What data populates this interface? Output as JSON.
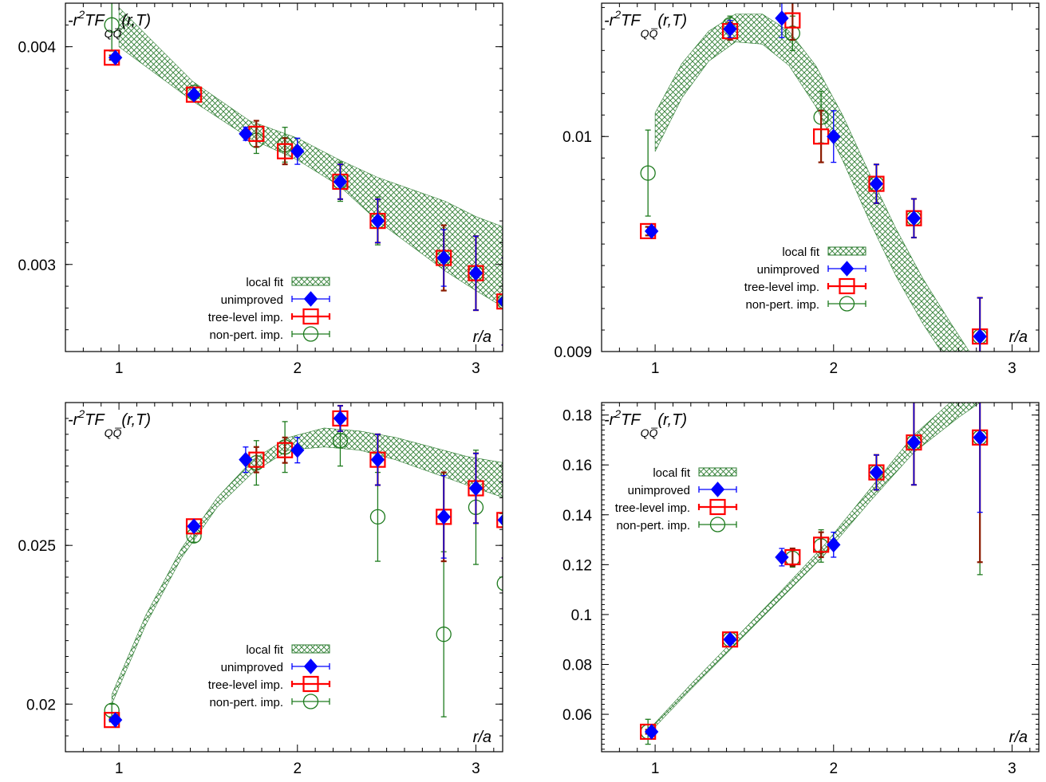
{
  "colors": {
    "fit": "#2e7d32",
    "unimproved": "#0000ff",
    "tree_level": "#ff0000",
    "tree_level_err": "#8b1a00",
    "non_pert": "#1e7b1e"
  },
  "legend_labels": [
    "local fit",
    "unimproved",
    "tree-level imp.",
    "non-pert. imp."
  ],
  "chart_data": [
    {
      "type": "scatter",
      "title": "",
      "ylabel": "-r^2TF_{QQ̄}(r,T)",
      "xlabel": "r/a",
      "xlim": [
        0.7,
        3.15
      ],
      "ylim": [
        0.0026,
        0.0042
      ],
      "xticks": [
        1,
        2,
        3
      ],
      "yticks": [
        0.003,
        0.004
      ],
      "ytick_labels": [
        "0.003",
        "0.004"
      ],
      "legend_position": "bottom-center",
      "fit_band": {
        "x": [
          1.0,
          1.414,
          1.732,
          2.0,
          2.236,
          2.449,
          2.828,
          3.0,
          3.162
        ],
        "lo": [
          0.004,
          0.00375,
          0.00358,
          0.00348,
          0.00336,
          0.0032,
          0.00297,
          0.00288,
          0.0028
        ],
        "hi": [
          0.00418,
          0.00384,
          0.00366,
          0.00358,
          0.00348,
          0.0034,
          0.00329,
          0.00322,
          0.00317
        ]
      },
      "series": [
        {
          "name": "unimproved",
          "points": [
            [
              0.98,
              0.00395,
              1e-05
            ],
            [
              1.42,
              0.00378,
              1e-05
            ],
            [
              1.71,
              0.0036,
              3e-05
            ],
            [
              2.0,
              0.00352,
              6e-05
            ],
            [
              2.24,
              0.00338,
              8e-05
            ],
            [
              2.45,
              0.0032,
              0.0001
            ],
            [
              2.82,
              0.00303,
              0.00013
            ],
            [
              3.0,
              0.00296,
              0.00017
            ],
            [
              3.16,
              0.00283,
              0.0002
            ]
          ]
        },
        {
          "name": "tree-level imp.",
          "points": [
            [
              0.96,
              0.00395,
              1e-05
            ],
            [
              1.42,
              0.00378,
              1e-05
            ],
            [
              1.77,
              0.0036,
              6e-05
            ],
            [
              1.93,
              0.00352,
              6e-05
            ],
            [
              2.24,
              0.00338,
              8e-05
            ],
            [
              2.45,
              0.0032,
              0.0001
            ],
            [
              2.82,
              0.00303,
              0.00015
            ],
            [
              3.0,
              0.00296,
              0.00017
            ],
            [
              3.16,
              0.00283,
              0.0002
            ]
          ]
        },
        {
          "name": "non-pert. imp.",
          "points": [
            [
              0.96,
              0.0041,
              0.00012
            ],
            [
              1.42,
              0.00379,
              2e-05
            ],
            [
              1.77,
              0.00357,
              6e-05
            ],
            [
              1.93,
              0.00355,
              8e-05
            ],
            [
              2.24,
              0.00338,
              9e-05
            ],
            [
              2.45,
              0.0032,
              0.00011
            ],
            [
              2.82,
              0.00303,
              0.00015
            ],
            [
              3.0,
              0.00296,
              0.00017
            ],
            [
              3.16,
              0.00283,
              0.0002
            ]
          ]
        }
      ]
    },
    {
      "type": "scatter",
      "title": "",
      "ylabel": "-r^2TF_{QQ̄}(r,T)",
      "xlabel": "r/a",
      "xlim": [
        0.7,
        3.15
      ],
      "ylim": [
        0.009,
        0.01062
      ],
      "xticks": [
        1,
        2,
        3
      ],
      "yticks": [
        0.009,
        0.01
      ],
      "ytick_labels": [
        "0.009",
        "0.01"
      ],
      "legend_position": "right-center",
      "fit_band": {
        "x": [
          1.0,
          1.15,
          1.3,
          1.45,
          1.6,
          1.75,
          1.9,
          2.05,
          2.2,
          2.35,
          2.5,
          2.65,
          2.8,
          2.9
        ],
        "lo": [
          0.00993,
          0.01018,
          0.01035,
          0.01044,
          0.01043,
          0.01033,
          0.01014,
          0.00989,
          0.00961,
          0.00935,
          0.00913,
          0.00894,
          0.00875,
          0.00862
        ],
        "hi": [
          0.01011,
          0.01034,
          0.01049,
          0.01057,
          0.01057,
          0.01049,
          0.01033,
          0.0101,
          0.00983,
          0.00957,
          0.00934,
          0.00914,
          0.00895,
          0.00883
        ]
      },
      "series": [
        {
          "name": "unimproved",
          "points": [
            [
              0.98,
              0.00956,
              2e-05
            ],
            [
              1.42,
              0.0105,
              4e-05
            ],
            [
              1.71,
              0.01055,
              9e-05
            ],
            [
              2.0,
              0.01,
              0.00012
            ],
            [
              2.24,
              0.00978,
              9e-05
            ],
            [
              2.45,
              0.00962,
              9e-05
            ],
            [
              2.82,
              0.00907,
              0.00018
            ]
          ]
        },
        {
          "name": "tree-level imp.",
          "points": [
            [
              0.96,
              0.00956,
              2e-05
            ],
            [
              1.42,
              0.01049,
              4e-05
            ],
            [
              1.77,
              0.01054,
              9e-05
            ],
            [
              1.93,
              0.01,
              0.00012
            ],
            [
              2.24,
              0.00978,
              9e-05
            ],
            [
              2.45,
              0.00962,
              9e-05
            ],
            [
              2.82,
              0.00907,
              0.00018
            ]
          ]
        },
        {
          "name": "non-pert. imp.",
          "points": [
            [
              0.96,
              0.00983,
              0.0002
            ],
            [
              1.42,
              0.01052,
              4e-05
            ],
            [
              1.77,
              0.01048,
              8e-05
            ],
            [
              1.93,
              0.01009,
              0.00012
            ],
            [
              2.24,
              0.00978,
              9e-05
            ],
            [
              2.45,
              0.00962,
              9e-05
            ],
            [
              2.82,
              0.00907,
              0.00018
            ]
          ]
        }
      ]
    },
    {
      "type": "scatter",
      "title": "",
      "ylabel": "-r^2TF_{QQ̄}(r,T)",
      "xlabel": "r/a",
      "xlim": [
        0.7,
        3.15
      ],
      "ylim": [
        0.0185,
        0.0295
      ],
      "xticks": [
        1,
        2,
        3
      ],
      "yticks": [
        0.02,
        0.025
      ],
      "ytick_labels": [
        "0.02",
        "0.025"
      ],
      "legend_position": "bottom-center",
      "fit_band": {
        "x": [
          0.96,
          1.15,
          1.35,
          1.55,
          1.75,
          1.95,
          2.15,
          2.35,
          2.55,
          2.75,
          2.95,
          3.16
        ],
        "lo": [
          0.02,
          0.0225,
          0.0246,
          0.0262,
          0.0273,
          0.028,
          0.0281,
          0.028,
          0.0277,
          0.0273,
          0.0269,
          0.0265
        ],
        "hi": [
          0.0203,
          0.0228,
          0.0249,
          0.0265,
          0.0277,
          0.0284,
          0.0287,
          0.0286,
          0.0284,
          0.0281,
          0.0278,
          0.0276
        ]
      },
      "series": [
        {
          "name": "unimproved",
          "points": [
            [
              0.98,
              0.0195,
              5e-05
            ],
            [
              1.42,
              0.0256,
              0.0001
            ],
            [
              1.71,
              0.0277,
              0.0004
            ],
            [
              2.0,
              0.028,
              0.0004
            ],
            [
              2.24,
              0.029,
              0.0004
            ],
            [
              2.45,
              0.0277,
              0.0008
            ],
            [
              2.82,
              0.0259,
              0.0013
            ],
            [
              3.0,
              0.0268,
              0.0011
            ],
            [
              3.16,
              0.0258,
              0.0012
            ]
          ]
        },
        {
          "name": "tree-level imp.",
          "points": [
            [
              0.96,
              0.0195,
              5e-05
            ],
            [
              1.42,
              0.0256,
              0.0001
            ],
            [
              1.77,
              0.0277,
              0.0004
            ],
            [
              1.93,
              0.028,
              0.0004
            ],
            [
              2.24,
              0.029,
              0.0004
            ],
            [
              2.45,
              0.0277,
              0.0008
            ],
            [
              2.82,
              0.0259,
              0.0014
            ],
            [
              3.0,
              0.0268,
              0.0011
            ],
            [
              3.16,
              0.0258,
              0.0012
            ]
          ]
        },
        {
          "name": "non-pert. imp.",
          "points": [
            [
              0.96,
              0.0198,
              0.0002
            ],
            [
              1.42,
              0.0253,
              0.0002
            ],
            [
              1.77,
              0.0276,
              0.0007
            ],
            [
              1.93,
              0.0281,
              0.0008
            ],
            [
              2.24,
              0.0283,
              0.0008
            ],
            [
              2.45,
              0.0259,
              0.0014
            ],
            [
              2.82,
              0.0222,
              0.0026
            ],
            [
              3.0,
              0.0262,
              0.0018
            ],
            [
              3.16,
              0.0238,
              0.0022
            ]
          ]
        }
      ]
    },
    {
      "type": "scatter",
      "title": "",
      "ylabel": "-r^2TF_{QQ̄}(r,T)",
      "xlabel": "r/a",
      "xlim": [
        0.7,
        3.15
      ],
      "ylim": [
        0.045,
        0.185
      ],
      "xticks": [
        1,
        2,
        3
      ],
      "yticks": [
        0.06,
        0.08,
        0.1,
        0.12,
        0.14,
        0.16,
        0.18
      ],
      "ytick_labels": [
        "0.06",
        "0.08",
        "0.1",
        "0.12",
        "0.14",
        "0.16",
        "0.18"
      ],
      "legend_position": "top-left",
      "fit_band": {
        "x": [
          0.96,
          1.2,
          1.45,
          1.7,
          1.95,
          2.2,
          2.45,
          2.7,
          2.82
        ],
        "lo": [
          0.052,
          0.07,
          0.088,
          0.106,
          0.124,
          0.145,
          0.165,
          0.179,
          0.185
        ],
        "hi": [
          0.0535,
          0.072,
          0.0905,
          0.109,
          0.128,
          0.15,
          0.172,
          0.188,
          0.195
        ]
      },
      "series": [
        {
          "name": "unimproved",
          "points": [
            [
              0.98,
              0.053,
              0.0008
            ],
            [
              1.42,
              0.09,
              0.0008
            ],
            [
              1.71,
              0.123,
              0.0035
            ],
            [
              2.0,
              0.128,
              0.005
            ],
            [
              2.24,
              0.157,
              0.007
            ],
            [
              2.45,
              0.169,
              0.017
            ],
            [
              2.82,
              0.171,
              0.03
            ]
          ]
        },
        {
          "name": "tree-level imp.",
          "points": [
            [
              0.96,
              0.053,
              0.0008
            ],
            [
              1.42,
              0.09,
              0.0008
            ],
            [
              1.77,
              0.123,
              0.0035
            ],
            [
              1.93,
              0.128,
              0.005
            ],
            [
              2.24,
              0.157,
              0.007
            ],
            [
              2.45,
              0.169,
              0.017
            ],
            [
              2.82,
              0.171,
              0.05
            ]
          ]
        },
        {
          "name": "non-pert. imp.",
          "points": [
            [
              0.96,
              0.053,
              0.005
            ],
            [
              1.42,
              0.09,
              0.0015
            ],
            [
              1.77,
              0.1225,
              0.0035
            ],
            [
              1.93,
              0.1275,
              0.0065
            ],
            [
              2.24,
              0.157,
              0.007
            ],
            [
              2.45,
              0.169,
              0.017
            ],
            [
              2.82,
              0.171,
              0.055
            ]
          ]
        }
      ]
    }
  ]
}
